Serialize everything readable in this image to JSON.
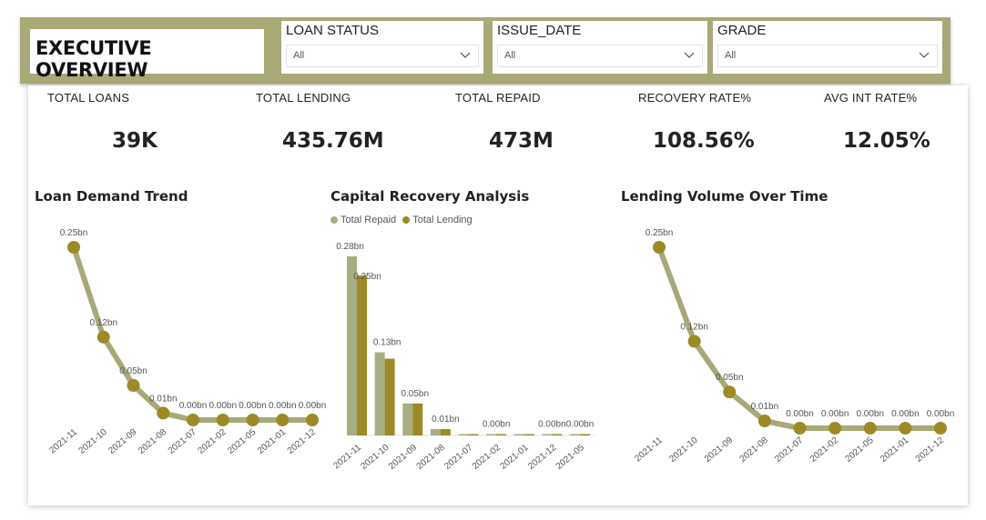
{
  "header": {
    "title": "EXECUTIVE OVERVIEW"
  },
  "filters": [
    {
      "label": "LOAN STATUS",
      "value": "All"
    },
    {
      "label": "ISSUE_DATE",
      "value": "All"
    },
    {
      "label": "GRADE",
      "value": "All"
    }
  ],
  "kpis": [
    {
      "label": "TOTAL LOANS",
      "value": "39K"
    },
    {
      "label": "TOTAL LENDING",
      "value": "435.76M"
    },
    {
      "label": "TOTAL REPAID",
      "value": "473M"
    },
    {
      "label": "RECOVERY RATE%",
      "value": "108.56%"
    },
    {
      "label": "AVG INT RATE%",
      "value": "12.05%"
    }
  ],
  "colors": {
    "line": "#a9a877",
    "marker": "#9c8a26",
    "repaid": "#a9ae82",
    "lending": "#9c8a26",
    "header": "#a9a877"
  },
  "chart_data": [
    {
      "type": "line",
      "title": "Loan Demand Trend",
      "categories": [
        "2021-11",
        "2021-10",
        "2021-09",
        "2021-08",
        "2021-07",
        "2021-02",
        "2021-05",
        "2021-01",
        "2021-12"
      ],
      "values": [
        0.25,
        0.12,
        0.05,
        0.01,
        0.0,
        0.0,
        0.0,
        0.0,
        0.0
      ],
      "data_labels": [
        "0.25bn",
        "0.12bn",
        "0.05bn",
        "0.01bn",
        "0.00bn",
        "0.00bn",
        "0.00bn",
        "0.00bn",
        "0.00bn"
      ],
      "ylim": [
        0,
        0.25
      ]
    },
    {
      "type": "bar",
      "title": "Capital Recovery Analysis",
      "categories": [
        "2021-11",
        "2021-10",
        "2021-09",
        "2021-08",
        "2021-07",
        "2021-02",
        "2021-01",
        "2021-12",
        "2021-05"
      ],
      "legend": "top-left",
      "series": [
        {
          "name": "Total Repaid",
          "values": [
            0.28,
            0.13,
            0.05,
            0.01,
            0.0,
            0.0,
            0.0,
            0.0,
            0.0
          ]
        },
        {
          "name": "Total Lending",
          "values": [
            0.25,
            0.12,
            0.05,
            0.01,
            0.0,
            0.0,
            0.0,
            0.0,
            0.0
          ]
        }
      ],
      "data_labels": [
        "0.28bn",
        "0.25bn",
        "0.13bn",
        "0.05bn",
        "0.01bn",
        "0.00bn",
        "0.00bn",
        "0.00bn"
      ],
      "ylim": [
        0,
        0.28
      ]
    },
    {
      "type": "line",
      "title": "Lending Volume Over Time",
      "categories": [
        "2021-11",
        "2021-10",
        "2021-09",
        "2021-08",
        "2021-07",
        "2021-02",
        "2021-05",
        "2021-01",
        "2021-12"
      ],
      "values": [
        0.25,
        0.12,
        0.05,
        0.01,
        0.0,
        0.0,
        0.0,
        0.0,
        0.0
      ],
      "data_labels": [
        "0.25bn",
        "0.12bn",
        "0.05bn",
        "0.01bn",
        "0.00bn",
        "0.00bn",
        "0.00bn",
        "0.00bn",
        "0.00bn"
      ],
      "ylim": [
        0,
        0.25
      ]
    }
  ]
}
